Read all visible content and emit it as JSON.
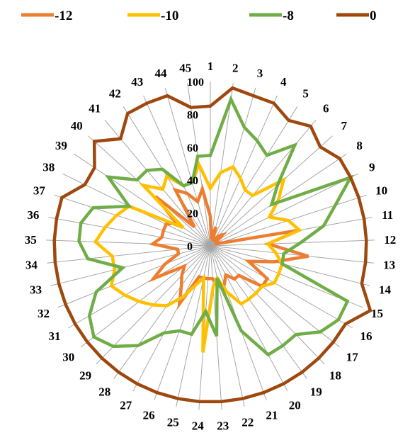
{
  "chart_data": {
    "type": "radar",
    "title": "",
    "categories": [
      "1",
      "2",
      "3",
      "4",
      "5",
      "6",
      "7",
      "8",
      "9",
      "10",
      "11",
      "12",
      "13",
      "14",
      "15",
      "16",
      "17",
      "18",
      "19",
      "20",
      "21",
      "22",
      "23",
      "24",
      "25",
      "26",
      "27",
      "28",
      "29",
      "30",
      "31",
      "32",
      "33",
      "34",
      "35",
      "36",
      "37",
      "38",
      "39",
      "40",
      "41",
      "42",
      "43",
      "44",
      "45"
    ],
    "radial_ticks": [
      "0",
      "20",
      "40",
      "60",
      "80",
      "100"
    ],
    "rlim": [
      0,
      100
    ],
    "legend_position": "top",
    "series": [
      {
        "name": "-12",
        "color": "#ed7d31",
        "values": [
          18,
          4,
          12,
          4,
          4,
          8,
          10,
          4,
          4,
          4,
          55,
          35,
          60,
          40,
          25,
          40,
          40,
          25,
          25,
          20,
          25,
          25,
          20,
          20,
          20,
          20,
          40,
          30,
          25,
          20,
          40,
          30,
          20,
          20,
          35,
          30,
          30,
          30,
          25,
          45,
          15,
          40,
          35,
          28,
          35
        ]
      },
      {
        "name": "-10",
        "color": "#ffc000",
        "values": [
          35,
          45,
          50,
          45,
          40,
          40,
          60,
          50,
          40,
          50,
          55,
          35,
          40,
          45,
          45,
          45,
          40,
          40,
          40,
          40,
          30,
          20,
          25,
          65,
          20,
          25,
          35,
          45,
          50,
          55,
          60,
          65,
          60,
          60,
          70,
          65,
          60,
          55,
          20,
          55,
          45,
          50,
          40,
          40,
          50
        ]
      },
      {
        "name": "-8",
        "color": "#70ad47",
        "values": [
          55,
          90,
          75,
          70,
          65,
          80,
          55,
          45,
          95,
          80,
          70,
          55,
          45,
          45,
          90,
          90,
          85,
          75,
          75,
          75,
          55,
          20,
          55,
          40,
          55,
          55,
          60,
          75,
          85,
          90,
          85,
          75,
          55,
          75,
          80,
          80,
          75,
          55,
          75,
          60,
          60,
          55,
          40,
          40,
          55
        ]
      },
      {
        "name": "0",
        "color": "#9e480e",
        "values": [
          85,
          97,
          95,
          95,
          90,
          95,
          90,
          95,
          95,
          95,
          95,
          95,
          95,
          95,
          105,
          95,
          95,
          95,
          95,
          95,
          95,
          95,
          95,
          95,
          95,
          95,
          95,
          95,
          95,
          95,
          95,
          95,
          95,
          95,
          95,
          95,
          95,
          85,
          85,
          95,
          85,
          95,
          95,
          95,
          85
        ]
      }
    ]
  }
}
